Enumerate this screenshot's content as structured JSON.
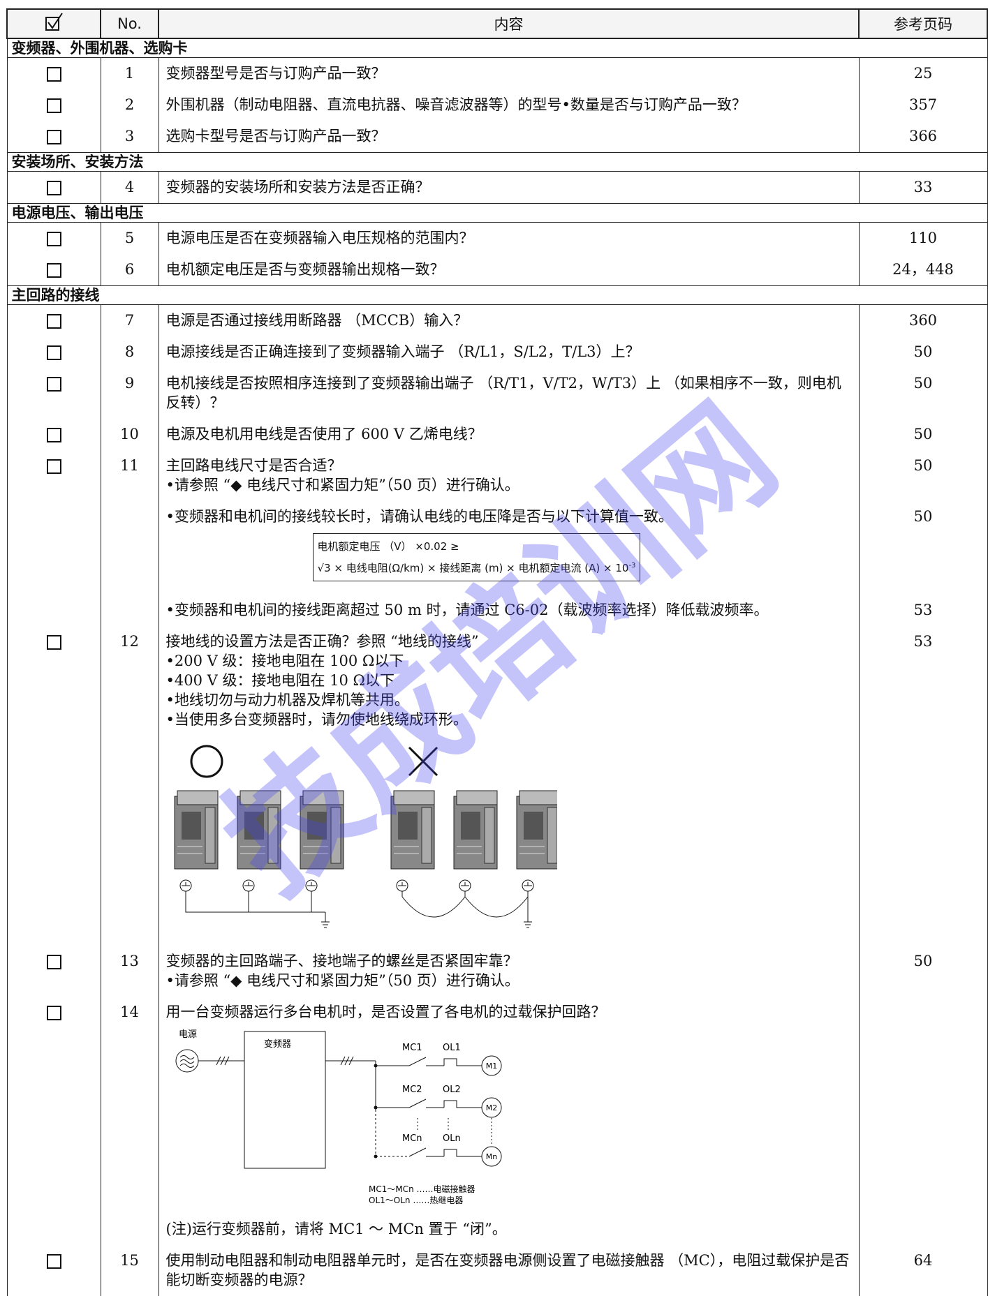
{
  "header": {
    "no": "No.",
    "content": "内容",
    "page": "参考页码"
  },
  "sections": [
    {
      "title": "变频器、外围机器、选购卡",
      "rows": [
        {
          "no": "1",
          "lines": [
            "变频器型号是否与订购产品一致？"
          ],
          "page": "25"
        },
        {
          "no": "2",
          "lines": [
            "外围机器（制动电阻器、直流电抗器、噪音滤波器等）的型号•数量是否与订购产品一致？"
          ],
          "page": "357"
        },
        {
          "no": "3",
          "lines": [
            "选购卡型号是否与订购产品一致？"
          ],
          "page": "366"
        }
      ]
    },
    {
      "title": "安装场所、安装方法",
      "rows": [
        {
          "no": "4",
          "lines": [
            "变频器的安装场所和安装方法是否正确？"
          ],
          "page": "33"
        }
      ]
    },
    {
      "title": "电源电压、输出电压",
      "rows": [
        {
          "no": "5",
          "lines": [
            "电源电压是否在变频器输入电压规格的范围内？"
          ],
          "page": "110"
        },
        {
          "no": "6",
          "lines": [
            "电机额定电压是否与变频器输出规格一致？"
          ],
          "page": "24，448"
        }
      ]
    },
    {
      "title": "主回路的接线",
      "rows": [
        {
          "no": "7",
          "lines": [
            "电源是否通过接线用断路器 （MCCB）输入？"
          ],
          "page": "360"
        },
        {
          "no": "8",
          "lines": [
            "电源接线是否正确连接到了变频器输入端子 （R/L1，S/L2，T/L3）上？"
          ],
          "page": "50"
        },
        {
          "no": "9",
          "lines": [
            "电机接线是否按照相序连接到了变频器输出端子 （R/T1，V/T2，W/T3）上 （如果相序不一致，则电机反转）？"
          ],
          "page": "50"
        },
        {
          "no": "10",
          "lines": [
            "电源及电机用电线是否使用了 600 V 乙烯电线？"
          ],
          "page": "50"
        },
        {
          "no": "11",
          "lines": [
            "主回路电线尺寸是否合适？",
            "•请参照 “◆ 电线尺寸和紧固力矩”（50 页）进行确认。"
          ],
          "page": "50"
        },
        {
          "lines": [
            "•变频器和电机间的接线较长时，请确认电线的电压降是否与以下计算值一致。"
          ],
          "page": "50",
          "formula": {
            "line1": "电机额定电压 （V） ×0.02 ≥",
            "line2": "√3 × 电线电阻(Ω/km) × 接线距离 (m) × 电机额定电流 (A) × 10",
            "exponent": "-3"
          }
        },
        {
          "lines": [
            "•变频器和电机间的接线距离超过 50 m 时，请通过 C6-02（载波频率选择）降低载波频率。"
          ],
          "page": "53"
        },
        {
          "no": "12",
          "lines": [
            "接地线的设置方法是否正确？参照 “地线的接线”",
            "•200 V 级：接地电阻在 100 Ω以下",
            "•400 V 级：接地电阻在 10 Ω以下",
            "•地线切勿与动力机器及焊机等共用。",
            "•当使用多台变频器时，请勿使地线绕成环形。"
          ],
          "page": "53"
        },
        {
          "no": "13",
          "lines": [
            "变频器的主回路端子、接地端子的螺丝是否紧固牢靠？",
            "•请参照 “◆ 电线尺寸和紧固力矩”（50 页）进行确认。"
          ],
          "page": "50"
        },
        {
          "no": "14",
          "lines": [
            "用一台变频器运行多台电机时，是否设置了各电机的过载保护回路？"
          ],
          "circuit": {
            "power": "电源",
            "inverter": "变频器",
            "mc": [
              "MC1",
              "MC2",
              "MCn"
            ],
            "ol": [
              "OL1",
              "OL2",
              "OLn"
            ],
            "motors": [
              "M1",
              "M2",
              "Mn"
            ],
            "legend": [
              "MC1～MCn ……电磁接触器",
              "OL1～OLn ……热继电器"
            ]
          },
          "note": "(注)运行变频器前，请将 MC1 ～ MCn 置于 “闭”。"
        },
        {
          "no": "15",
          "lines": [
            "使用制动电阻器和制动电阻器单元时，是否在变频器电源侧设置了电磁接触器 （MC），电阻过载保护是否能切断变频器的电源？"
          ],
          "page": "64"
        }
      ]
    }
  ],
  "watermark": "技成培训网"
}
